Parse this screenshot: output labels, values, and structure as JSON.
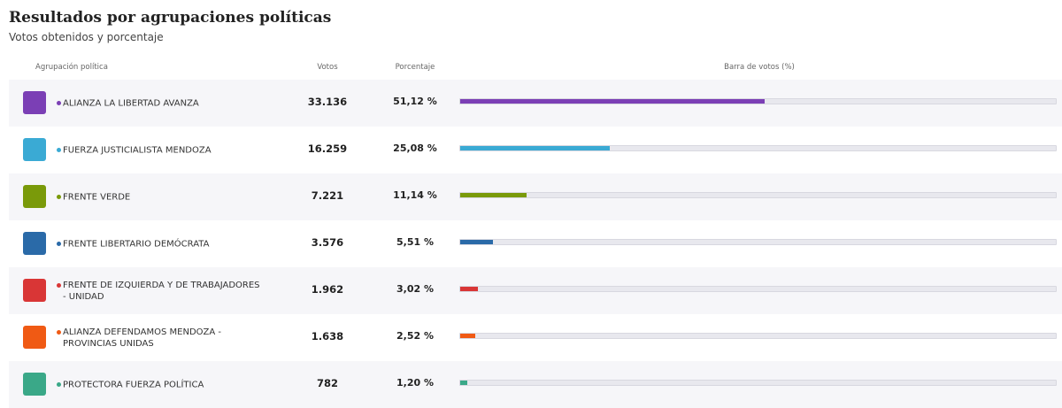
{
  "header": {
    "title": "Resultados por agrupaciones políticas",
    "subtitle": "Votos obtenidos y porcentaje"
  },
  "table": {
    "columns": [
      "Agrupación política",
      "Votos",
      "Porcentaje",
      "Barra de votos (%)"
    ],
    "rows": [
      {
        "name": "ALIANZA LA LIBERTAD AVANZA",
        "votes": "33.136",
        "percent": {
          "value": 51.12,
          "label": "51,12 %"
        },
        "color": "#7b3fb5"
      },
      {
        "name": "FUERZA JUSTICIALISTA MENDOZA",
        "votes": "16.259",
        "percent": {
          "value": 25.08,
          "label": "25,08 %"
        },
        "color": "#3aaad4"
      },
      {
        "name": "FRENTE VERDE",
        "votes": "7.221",
        "percent": {
          "value": 11.14,
          "label": "11,14 %"
        },
        "color": "#7a9a0a"
      },
      {
        "name": "FRENTE LIBERTARIO DEMÓCRATA",
        "votes": "3.576",
        "percent": {
          "value": 5.51,
          "label": "5,51 %"
        },
        "color": "#2a6aa8"
      },
      {
        "name": "FRENTE DE IZQUIERDA Y DE TRABAJADORES - UNIDAD",
        "votes": "1.962",
        "percent": {
          "value": 3.02,
          "label": "3,02 %"
        },
        "color": "#d93636"
      },
      {
        "name": "ALIANZA DEFENDAMOS MENDOZA - PROVINCIAS UNIDAS",
        "votes": "1.638",
        "percent": {
          "value": 2.52,
          "label": "2,52 %"
        },
        "color": "#f05a14"
      },
      {
        "name": "PROTECTORA FUERZA POLÍTICA",
        "votes": "782",
        "percent": {
          "value": 1.2,
          "label": "1,20 %"
        },
        "color": "#3aa888"
      }
    ]
  }
}
